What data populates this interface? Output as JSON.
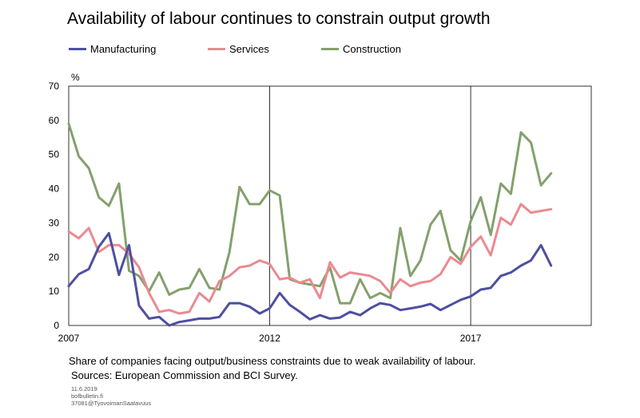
{
  "title": "Availability of labour continues to constrain output growth",
  "legend": [
    {
      "name": "Manufacturing",
      "color": "#4e4f9f"
    },
    {
      "name": "Services",
      "color": "#ea8a91"
    },
    {
      "name": "Construction",
      "color": "#84a06d"
    }
  ],
  "note": {
    "line1": "Share of companies facing output/business constraints due to weak availability  of labour.",
    "line2": "Sources: European Commission and BCI Survey."
  },
  "meta": {
    "date": "11.6.2019",
    "site": "bofbulletin.fi",
    "id": "37081@TyovoimanSaatavuus"
  },
  "chart_data": {
    "type": "line",
    "ylabel": "%",
    "ylim": [
      0,
      70
    ],
    "yticks": [
      "0",
      "10",
      "20",
      "30",
      "40",
      "50",
      "60",
      "70"
    ],
    "xlim": [
      2007,
      2020
    ],
    "xticks": [
      "2007",
      "2012",
      "2017"
    ],
    "grid": "vertical lines at 2012 and 2017",
    "x": [
      2007.0,
      2007.25,
      2007.5,
      2007.75,
      2008.0,
      2008.25,
      2008.5,
      2008.75,
      2009.0,
      2009.25,
      2009.5,
      2009.75,
      2010.0,
      2010.25,
      2010.5,
      2010.75,
      2011.0,
      2011.25,
      2011.5,
      2011.75,
      2012.0,
      2012.25,
      2012.5,
      2012.75,
      2013.0,
      2013.25,
      2013.5,
      2013.75,
      2014.0,
      2014.25,
      2014.5,
      2014.75,
      2015.0,
      2015.25,
      2015.5,
      2015.75,
      2016.0,
      2016.25,
      2016.5,
      2016.75,
      2017.0,
      2017.25,
      2017.5,
      2017.75,
      2018.0,
      2018.25,
      2018.5,
      2018.75,
      2019.0
    ],
    "series": [
      {
        "name": "Manufacturing",
        "color": "#4e4f9f",
        "values": [
          11.5,
          15,
          16.5,
          23,
          27,
          14.8,
          23.5,
          5.8,
          2,
          2.5,
          0,
          1,
          1.5,
          2,
          2,
          2.5,
          6.5,
          6.5,
          5.5,
          3.5,
          5,
          9.5,
          6,
          4,
          1.8,
          3,
          2,
          2.3,
          4,
          3,
          5,
          6.5,
          6,
          4.5,
          5,
          5.5,
          6.3,
          4.5,
          6,
          7.5,
          8.5,
          10.5,
          11,
          14.5,
          15.5,
          17.5,
          19,
          23.5,
          17.5
        ]
      },
      {
        "name": "Services",
        "color": "#ea8a91",
        "values": [
          27.5,
          25.5,
          28.5,
          21.5,
          23.5,
          23.5,
          21,
          17,
          9.5,
          4,
          4.5,
          3.5,
          4,
          9.5,
          7,
          13,
          14.5,
          17,
          17.5,
          19,
          18,
          13.5,
          14,
          12.5,
          13.5,
          8,
          18.5,
          14,
          15.5,
          15,
          14.5,
          13,
          9.5,
          13.5,
          11.5,
          12.5,
          13,
          15,
          20,
          18,
          23,
          26,
          20.5,
          31.5,
          29.5,
          35.5,
          33,
          33.5,
          34
        ]
      },
      {
        "name": "Construction",
        "color": "#84a06d",
        "values": [
          59,
          49.5,
          46,
          37.5,
          35,
          41.5,
          16,
          14.5,
          10,
          15.5,
          9,
          10.5,
          11,
          16.5,
          11,
          10.5,
          21.5,
          40.5,
          35.5,
          35.5,
          39.5,
          38,
          13.5,
          12.5,
          12,
          11.5,
          17,
          6.5,
          6.5,
          13.5,
          8,
          9.5,
          8,
          28.5,
          14.5,
          19,
          29.5,
          33.5,
          22,
          19,
          30.5,
          37.5,
          26.5,
          41.5,
          38.5,
          56.5,
          53.5,
          41,
          44.5
        ]
      }
    ]
  }
}
